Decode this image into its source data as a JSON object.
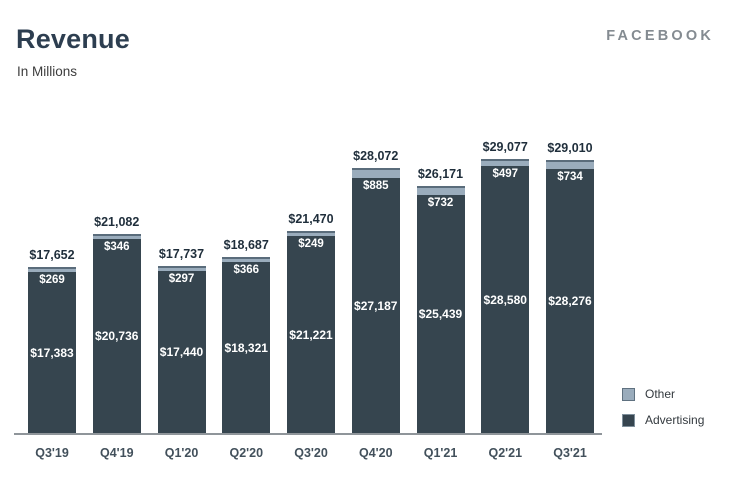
{
  "header": {
    "title": "Revenue",
    "subtitle": "In Millions",
    "brand": "FACEBOOK"
  },
  "chart_data": {
    "type": "bar",
    "stacked": true,
    "title": "Revenue",
    "subtitle": "In Millions",
    "unit": "USD millions",
    "categories": [
      "Q3'19",
      "Q4'19",
      "Q1'20",
      "Q2'20",
      "Q3'20",
      "Q4'20",
      "Q1'21",
      "Q2'21",
      "Q3'21"
    ],
    "series": [
      {
        "name": "Advertising",
        "color": "#36454f",
        "values": [
          17383,
          20736,
          17440,
          18321,
          21221,
          27187,
          25439,
          28580,
          28276
        ],
        "labels": [
          "$17,383",
          "$20,736",
          "$17,440",
          "$18,321",
          "$21,221",
          "$27,187",
          "$25,439",
          "$28,580",
          "$28,276"
        ]
      },
      {
        "name": "Other",
        "color": "#9aacbc",
        "values": [
          269,
          346,
          297,
          366,
          249,
          885,
          732,
          497,
          734
        ],
        "labels": [
          "$269",
          "$346",
          "$297",
          "$366",
          "$249",
          "$885",
          "$732",
          "$497",
          "$734"
        ]
      }
    ],
    "totals": [
      17652,
      21082,
      17737,
      18687,
      21470,
      28072,
      26171,
      29077,
      29010
    ],
    "total_labels": [
      "$17,652",
      "$21,082",
      "$17,737",
      "$18,687",
      "$21,470",
      "$28,072",
      "$26,171",
      "$29,077",
      "$29,010"
    ],
    "ylim": [
      0,
      29077
    ],
    "grid": false,
    "legend_position": "bottom-right"
  },
  "legend": {
    "items": [
      {
        "label": "Other",
        "color": "#9aacbc",
        "border": "#5f7180"
      },
      {
        "label": "Advertising",
        "color": "#36454f",
        "border": "#7f909c"
      }
    ]
  },
  "colors": {
    "advertising": "#36454f",
    "other": "#9aacbc",
    "other_top_edge": "#5a6c7b",
    "axis_line": "#8f959a",
    "title": "#2d3e50",
    "brand": "#848b91",
    "total_label": "#1f2e3b",
    "axis_label": "#42505b"
  }
}
